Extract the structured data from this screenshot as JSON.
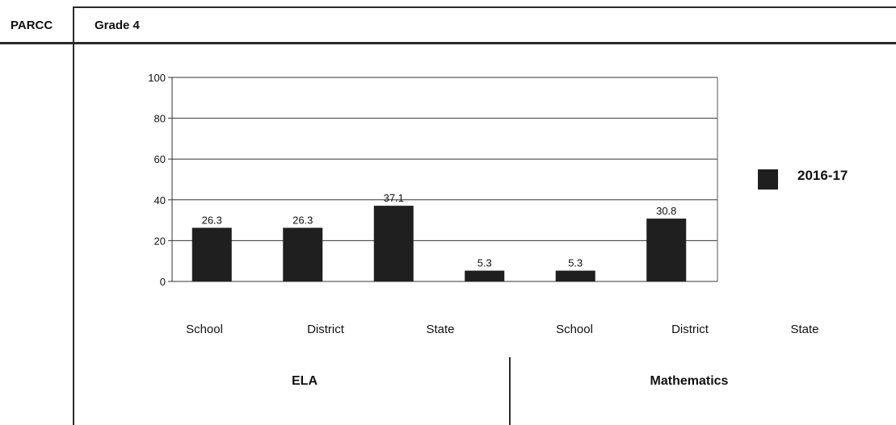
{
  "header": {
    "section_label": "PARCC",
    "grade_label": "Grade 4"
  },
  "chart_data": {
    "type": "bar",
    "categories": [
      "School",
      "District",
      "State",
      "School",
      "District",
      "State"
    ],
    "groups": [
      "ELA",
      "Mathematics"
    ],
    "series": [
      {
        "name": "2016-17",
        "values": [
          26.3,
          26.3,
          37.1,
          5.3,
          5.3,
          30.8
        ],
        "labels": [
          "26.3",
          "26.3",
          "37.1",
          "5.3",
          "5.3",
          "30.8"
        ]
      }
    ],
    "yticks": [
      "0",
      "20",
      "40",
      "60",
      "80",
      "100"
    ],
    "ylim": [
      0,
      100
    ],
    "grid": true,
    "legend": "right",
    "colors": {
      "bar": "#1f1f1f",
      "grid": "#333333"
    }
  }
}
